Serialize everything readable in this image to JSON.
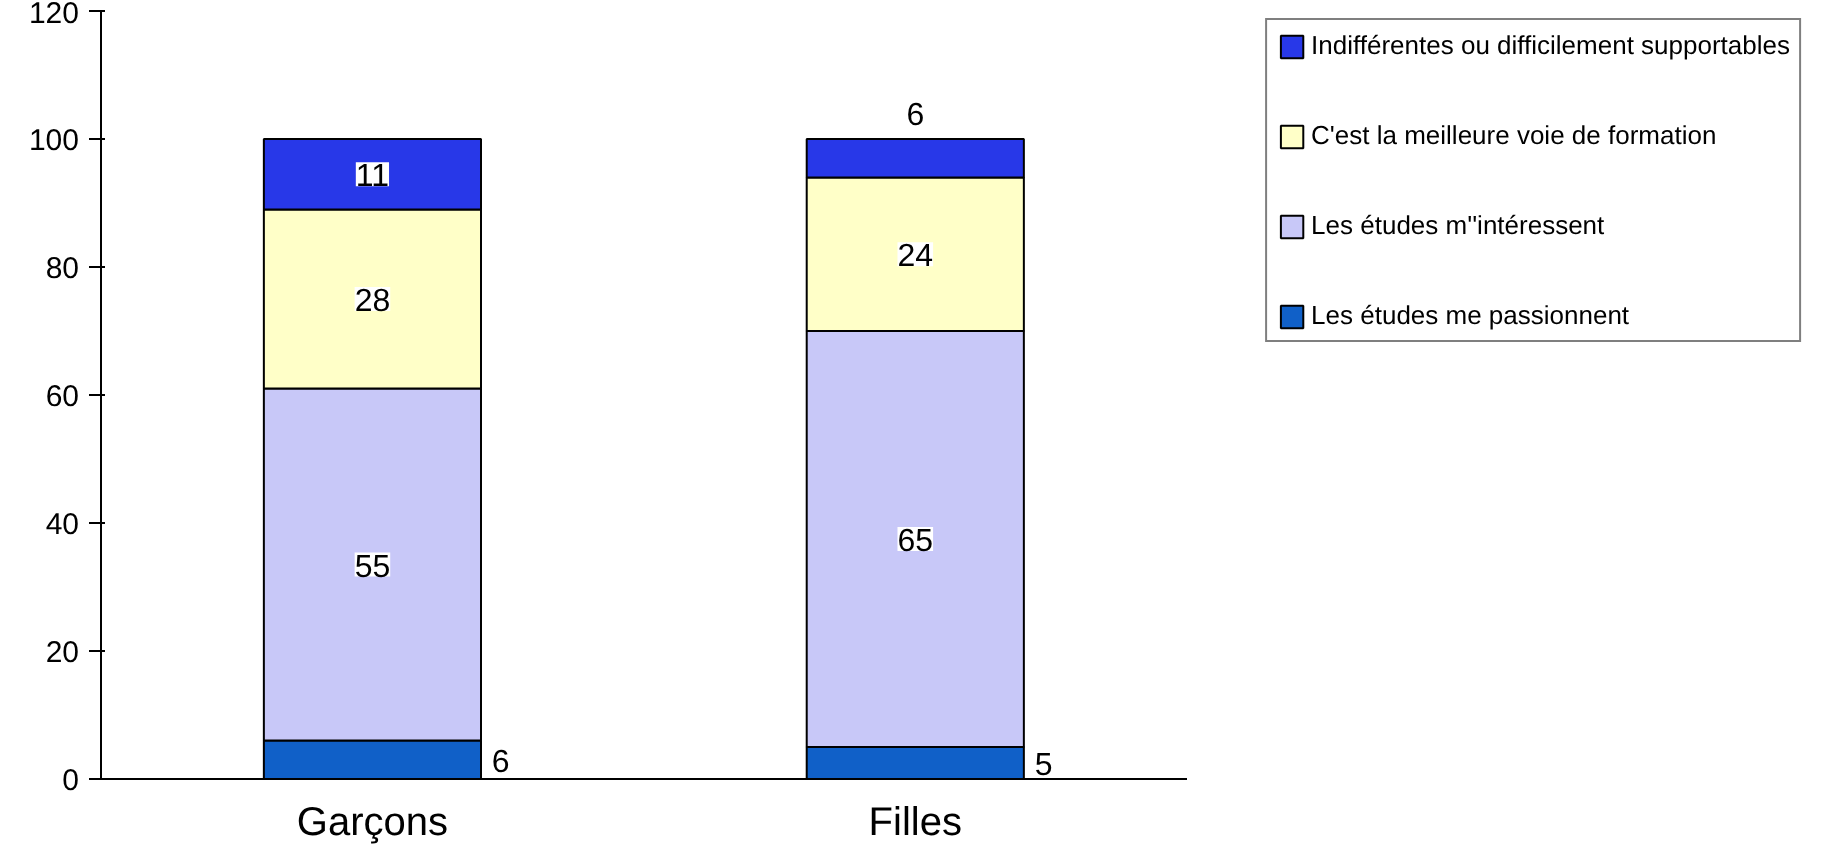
{
  "chart_data": {
    "type": "bar",
    "stacked": true,
    "categories": [
      "Garçons",
      "Filles"
    ],
    "series": [
      {
        "name": "Les études me passionnent",
        "color": "#1060c8",
        "values": [
          6,
          5
        ]
      },
      {
        "name": "Les études m''intéressent",
        "color": "#c8c8f8",
        "values": [
          55,
          65
        ]
      },
      {
        "name": "C'est la meilleure voie de formation",
        "color": "#ffffc8",
        "values": [
          28,
          24
        ]
      },
      {
        "name": "Indifférentes ou difficilement supportables",
        "color": "#2838e8",
        "values": [
          11,
          6
        ]
      }
    ],
    "ylim": [
      0,
      120
    ],
    "yticks": [
      0,
      20,
      40,
      60,
      80,
      100,
      120
    ],
    "grid": false,
    "legend": "right",
    "data_labels": true
  }
}
